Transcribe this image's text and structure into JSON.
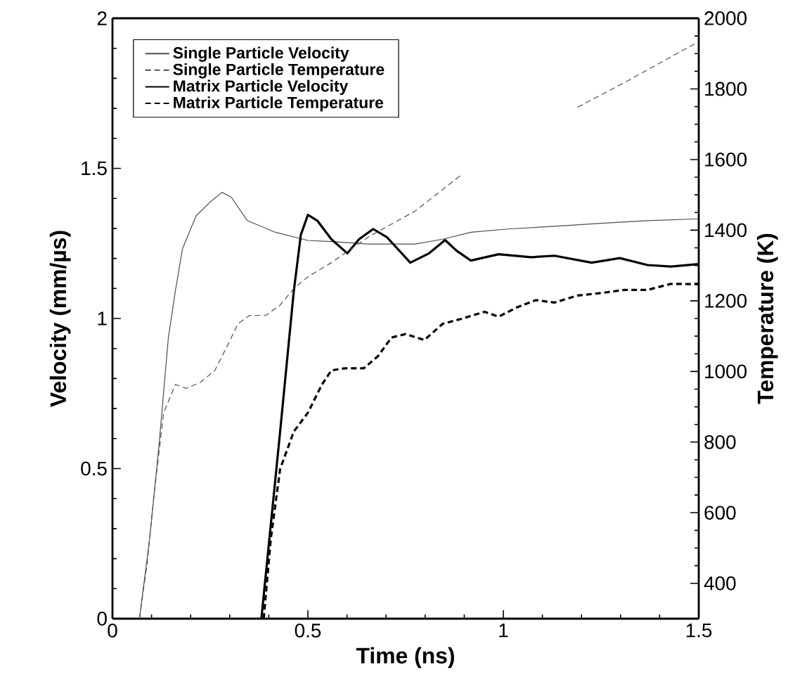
{
  "chart_data": {
    "type": "line",
    "xlabel": "Time (ns)",
    "ylabel": "Velocity (mm/µs)",
    "y2label": "Temperature (K)",
    "xlim": [
      0,
      1.5
    ],
    "xticks": [
      0,
      0.5,
      1,
      1.5
    ],
    "ylim": [
      0,
      2
    ],
    "yticks": [
      0,
      0.5,
      1,
      1.5,
      2
    ],
    "y2lim": [
      300,
      2000
    ],
    "y2ticks": [
      400,
      600,
      800,
      1000,
      1200,
      1400,
      1600,
      1800,
      2000
    ],
    "legend": "top left",
    "grid": false,
    "series": [
      {
        "name": "Single Particle Velocity",
        "color": "#4d4d4d",
        "line_style": "solid",
        "axis": "y",
        "x": [
          0.069,
          0.095,
          0.119,
          0.143,
          0.161,
          0.179,
          0.214,
          0.25,
          0.28,
          0.304,
          0.345,
          0.417,
          0.5,
          0.56,
          0.655,
          0.774,
          0.845,
          0.917,
          1.012,
          1.131,
          1.25,
          1.369,
          1.5
        ],
        "values": [
          0,
          0.265,
          0.577,
          0.936,
          1.092,
          1.232,
          1.342,
          1.388,
          1.42,
          1.404,
          1.326,
          1.287,
          1.26,
          1.256,
          1.248,
          1.248,
          1.264,
          1.287,
          1.298,
          1.307,
          1.317,
          1.326,
          1.332
        ]
      },
      {
        "name": "Single Particle Temperature",
        "color": "#4d4d4d",
        "line_style": "dashed",
        "axis": "y2",
        "x": [
          0.069,
          0.089,
          0.107,
          0.131,
          0.161,
          0.19,
          0.226,
          0.262,
          0.298,
          0.321,
          0.351,
          0.393,
          0.429,
          0.464,
          0.5,
          0.56,
          0.655,
          0.774,
          0.893,
          1.0,
          1.19,
          1.31,
          1.5
        ],
        "values": [
          300,
          459,
          658,
          883,
          963,
          952,
          970,
          1003,
          1082,
          1135,
          1159,
          1159,
          1188,
          1235,
          1268,
          1308,
          1381,
          1454,
          1557,
          null,
          1748,
          1818,
          1934
        ]
      },
      {
        "name": "Matrix Particle Velocity",
        "color": "#000000",
        "line_style": "solid",
        "axis": "y",
        "x": [
          0.381,
          0.429,
          0.464,
          0.482,
          0.5,
          0.524,
          0.56,
          0.601,
          0.631,
          0.667,
          0.702,
          0.762,
          0.81,
          0.851,
          0.881,
          0.917,
          0.988,
          1.071,
          1.131,
          1.226,
          1.298,
          1.369,
          1.429,
          1.5
        ],
        "values": [
          0,
          0.624,
          1.092,
          1.279,
          1.345,
          1.326,
          1.264,
          1.217,
          1.264,
          1.298,
          1.271,
          1.186,
          1.217,
          1.261,
          1.225,
          1.193,
          1.214,
          1.204,
          1.209,
          1.186,
          1.201,
          1.178,
          1.173,
          1.181
        ]
      },
      {
        "name": "Matrix Particle Temperature",
        "color": "#000000",
        "line_style": "dashed",
        "axis": "y2",
        "x": [
          0.387,
          0.405,
          0.429,
          0.464,
          0.5,
          0.536,
          0.56,
          0.595,
          0.643,
          0.679,
          0.714,
          0.75,
          0.798,
          0.845,
          0.893,
          0.952,
          0.988,
          1.036,
          1.083,
          1.131,
          1.19,
          1.25,
          1.31,
          1.369,
          1.429,
          1.5
        ],
        "values": [
          300,
          525,
          724,
          830,
          883,
          963,
          1003,
          1009,
          1009,
          1043,
          1096,
          1106,
          1089,
          1135,
          1149,
          1169,
          1155,
          1182,
          1202,
          1195,
          1215,
          1222,
          1231,
          1231,
          1248,
          1247
        ]
      }
    ]
  }
}
